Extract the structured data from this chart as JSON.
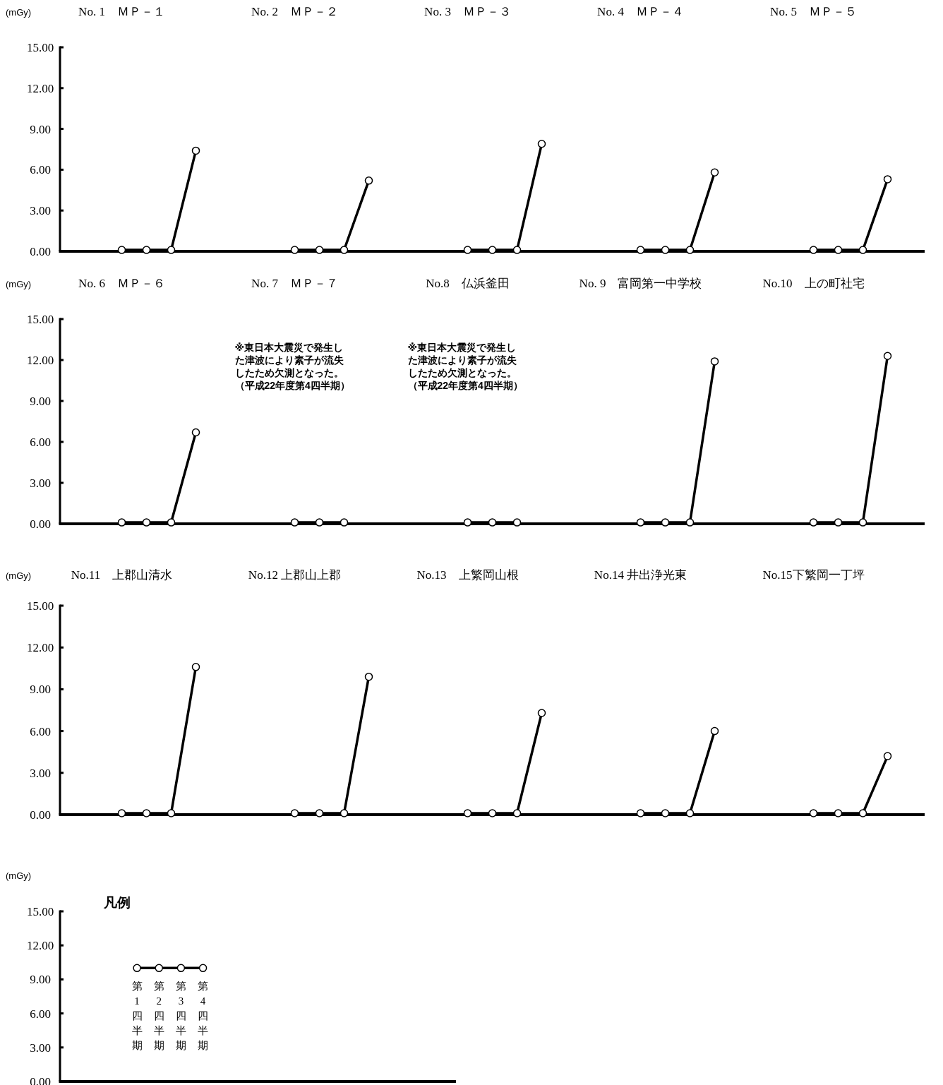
{
  "chart_data": [
    {
      "type": "line",
      "ylabel": "(mGy)",
      "ylim": [
        0,
        15
      ],
      "marker": "circle",
      "yticks": [
        {
          "value": 0,
          "label": "0.00"
        },
        {
          "value": 3,
          "label": "3.00"
        },
        {
          "value": 6,
          "label": "6.00"
        },
        {
          "value": 9,
          "label": "9.00"
        },
        {
          "value": 12,
          "label": "12.00"
        },
        {
          "value": 15,
          "label": "15.00"
        }
      ],
      "categories": [
        null,
        null,
        "No. 1　ＭＰ－１",
        null,
        null,
        null,
        null,
        null,
        null,
        "No. 2　ＭＰ－２",
        null,
        null,
        null,
        null,
        null,
        null,
        "No. 3　ＭＰ－３",
        null,
        null,
        null,
        null,
        null,
        null,
        "No. 4　ＭＰ－４",
        null,
        null,
        null,
        null,
        null,
        null,
        "No. 5　ＭＰ－５",
        null,
        null,
        null,
        null
      ],
      "series": [
        {
          "color": "#000000",
          "values": [
            null,
            null,
            0.1,
            0.1,
            0.1,
            7.4,
            null,
            null,
            null,
            null,
            null,
            null,
            null,
            null,
            null,
            null,
            null,
            null,
            null,
            null,
            null,
            null,
            null,
            null,
            null,
            null,
            null,
            null,
            null,
            null,
            null,
            null,
            null,
            null,
            null
          ]
        },
        {
          "color": "#000000",
          "values": [
            null,
            null,
            null,
            null,
            null,
            null,
            null,
            null,
            null,
            0.1,
            0.1,
            0.1,
            5.2,
            null,
            null,
            null,
            null,
            null,
            null,
            null,
            null,
            null,
            null,
            null,
            null,
            null,
            null,
            null,
            null,
            null,
            null,
            null,
            null,
            null,
            null
          ]
        },
        {
          "color": "#000000",
          "values": [
            null,
            null,
            null,
            null,
            null,
            null,
            null,
            null,
            null,
            null,
            null,
            null,
            null,
            null,
            null,
            null,
            0.1,
            0.1,
            0.1,
            7.9,
            null,
            null,
            null,
            null,
            null,
            null,
            null,
            null,
            null,
            null,
            null,
            null,
            null,
            null,
            null
          ]
        },
        {
          "color": "#000000",
          "values": [
            null,
            null,
            null,
            null,
            null,
            null,
            null,
            null,
            null,
            null,
            null,
            null,
            null,
            null,
            null,
            null,
            null,
            null,
            null,
            null,
            null,
            null,
            null,
            0.1,
            0.1,
            0.1,
            5.8,
            null,
            null,
            null,
            null,
            null,
            null,
            null,
            null
          ]
        },
        {
          "color": "#000000",
          "values": [
            null,
            null,
            null,
            null,
            null,
            null,
            null,
            null,
            null,
            null,
            null,
            null,
            null,
            null,
            null,
            null,
            null,
            null,
            null,
            null,
            null,
            null,
            null,
            null,
            null,
            null,
            null,
            null,
            null,
            null,
            0.1,
            0.1,
            0.1,
            5.3,
            null
          ]
        }
      ]
    },
    {
      "type": "line",
      "ylabel": "(mGy)",
      "ylim": [
        0,
        15
      ],
      "marker": "circle",
      "yticks": [
        {
          "value": 0,
          "label": "0.00"
        },
        {
          "value": 3,
          "label": "3.00"
        },
        {
          "value": 6,
          "label": "6.00"
        },
        {
          "value": 9,
          "label": "9.00"
        },
        {
          "value": 12,
          "label": "12.00"
        },
        {
          "value": 15,
          "label": "15.00"
        }
      ],
      "categories": [
        null,
        null,
        "No. 6　ＭＰ－６",
        null,
        null,
        null,
        null,
        null,
        null,
        "No. 7　ＭＰ－７",
        null,
        null,
        null,
        null,
        null,
        null,
        "No.8　仏浜釜田",
        null,
        null,
        null,
        null,
        null,
        null,
        "No. 9　富岡第一中学校",
        null,
        null,
        null,
        null,
        null,
        null,
        "No.10　上の町社宅",
        null,
        null,
        null,
        null
      ],
      "annotations": [
        "※東日本大震災で発生した津波により素子が流失したため欠測となった。（平成22年度第4四半期）",
        "※東日本大震災で発生した津波により素子が流失したため欠測となった。（平成22年度第4四半期）"
      ],
      "series": [
        {
          "color": "#000000",
          "values": [
            null,
            null,
            0.1,
            0.1,
            0.1,
            6.7,
            null,
            null,
            null,
            null,
            null,
            null,
            null,
            null,
            null,
            null,
            null,
            null,
            null,
            null,
            null,
            null,
            null,
            null,
            null,
            null,
            null,
            null,
            null,
            null,
            null,
            null,
            null,
            null,
            null
          ]
        },
        {
          "color": "#000000",
          "values": [
            null,
            null,
            null,
            null,
            null,
            null,
            null,
            null,
            null,
            0.1,
            0.1,
            0.1,
            null,
            null,
            null,
            null,
            null,
            null,
            null,
            null,
            null,
            null,
            null,
            null,
            null,
            null,
            null,
            null,
            null,
            null,
            null,
            null,
            null,
            null,
            null
          ]
        },
        {
          "color": "#000000",
          "values": [
            null,
            null,
            null,
            null,
            null,
            null,
            null,
            null,
            null,
            null,
            null,
            null,
            null,
            null,
            null,
            null,
            0.1,
            0.1,
            0.1,
            null,
            null,
            null,
            null,
            null,
            null,
            null,
            null,
            null,
            null,
            null,
            null,
            null,
            null,
            null,
            null
          ]
        },
        {
          "color": "#000000",
          "values": [
            null,
            null,
            null,
            null,
            null,
            null,
            null,
            null,
            null,
            null,
            null,
            null,
            null,
            null,
            null,
            null,
            null,
            null,
            null,
            null,
            null,
            null,
            null,
            0.1,
            0.1,
            0.1,
            11.9,
            null,
            null,
            null,
            null,
            null,
            null,
            null,
            null
          ]
        },
        {
          "color": "#000000",
          "values": [
            null,
            null,
            null,
            null,
            null,
            null,
            null,
            null,
            null,
            null,
            null,
            null,
            null,
            null,
            null,
            null,
            null,
            null,
            null,
            null,
            null,
            null,
            null,
            null,
            null,
            null,
            null,
            null,
            null,
            null,
            0.1,
            0.1,
            0.1,
            12.3,
            null
          ]
        }
      ]
    },
    {
      "type": "line",
      "ylabel": "(mGy)",
      "ylim": [
        0,
        15
      ],
      "marker": "circle",
      "yticks": [
        {
          "value": 0,
          "label": "0.00"
        },
        {
          "value": 3,
          "label": "3.00"
        },
        {
          "value": 6,
          "label": "6.00"
        },
        {
          "value": 9,
          "label": "9.00"
        },
        {
          "value": 12,
          "label": "12.00"
        },
        {
          "value": 15,
          "label": "15.00"
        }
      ],
      "categories": [
        null,
        null,
        "No.11　上郡山清水",
        null,
        null,
        null,
        null,
        null,
        null,
        "No.12 上郡山上郡",
        null,
        null,
        null,
        null,
        null,
        null,
        "No.13　上繁岡山根",
        null,
        null,
        null,
        null,
        null,
        null,
        "No.14 井出浄光東",
        null,
        null,
        null,
        null,
        null,
        null,
        "No.15下繁岡一丁坪",
        null,
        null,
        null,
        null
      ],
      "series": [
        {
          "color": "#000000",
          "values": [
            null,
            null,
            0.1,
            0.1,
            0.1,
            10.6,
            null,
            null,
            null,
            null,
            null,
            null,
            null,
            null,
            null,
            null,
            null,
            null,
            null,
            null,
            null,
            null,
            null,
            null,
            null,
            null,
            null,
            null,
            null,
            null,
            null,
            null,
            null,
            null,
            null
          ]
        },
        {
          "color": "#000000",
          "values": [
            null,
            null,
            null,
            null,
            null,
            null,
            null,
            null,
            null,
            0.1,
            0.1,
            0.1,
            9.9,
            null,
            null,
            null,
            null,
            null,
            null,
            null,
            null,
            null,
            null,
            null,
            null,
            null,
            null,
            null,
            null,
            null,
            null,
            null,
            null,
            null,
            null
          ]
        },
        {
          "color": "#000000",
          "values": [
            null,
            null,
            null,
            null,
            null,
            null,
            null,
            null,
            null,
            null,
            null,
            null,
            null,
            null,
            null,
            null,
            0.1,
            0.1,
            0.1,
            7.3,
            null,
            null,
            null,
            null,
            null,
            null,
            null,
            null,
            null,
            null,
            null,
            null,
            null,
            null,
            null
          ]
        },
        {
          "color": "#000000",
          "values": [
            null,
            null,
            null,
            null,
            null,
            null,
            null,
            null,
            null,
            null,
            null,
            null,
            null,
            null,
            null,
            null,
            null,
            null,
            null,
            null,
            null,
            null,
            null,
            0.1,
            0.1,
            0.1,
            6.0,
            null,
            null,
            null,
            null,
            null,
            null,
            null,
            null
          ]
        },
        {
          "color": "#000000",
          "values": [
            null,
            null,
            null,
            null,
            null,
            null,
            null,
            null,
            null,
            null,
            null,
            null,
            null,
            null,
            null,
            null,
            null,
            null,
            null,
            null,
            null,
            null,
            null,
            null,
            null,
            null,
            null,
            null,
            null,
            null,
            0.1,
            0.1,
            0.1,
            4.2,
            null
          ]
        }
      ]
    },
    {
      "type": "line",
      "title": "凡例",
      "ylabel": "(mGy)",
      "ylim": [
        0,
        15
      ],
      "marker": "circle",
      "yticks": [
        {
          "value": 0,
          "label": "0.00"
        },
        {
          "value": 3,
          "label": "3.00"
        },
        {
          "value": 6,
          "label": "6.00"
        },
        {
          "value": 9,
          "label": "9.00"
        },
        {
          "value": 12,
          "label": "12.00"
        },
        {
          "value": 15,
          "label": "15.00"
        }
      ],
      "categories": [
        null,
        null,
        null,
        "第1四半期",
        "第2四半期",
        "第3四半期",
        "第4四半期",
        null,
        null,
        null,
        null,
        null,
        null,
        null,
        null,
        null,
        null,
        null
      ],
      "series": [
        {
          "color": "#000000",
          "values": [
            null,
            null,
            null,
            10,
            10,
            10,
            10,
            null,
            null,
            null,
            null,
            null,
            null,
            null,
            null,
            null,
            null,
            null
          ]
        }
      ]
    }
  ]
}
